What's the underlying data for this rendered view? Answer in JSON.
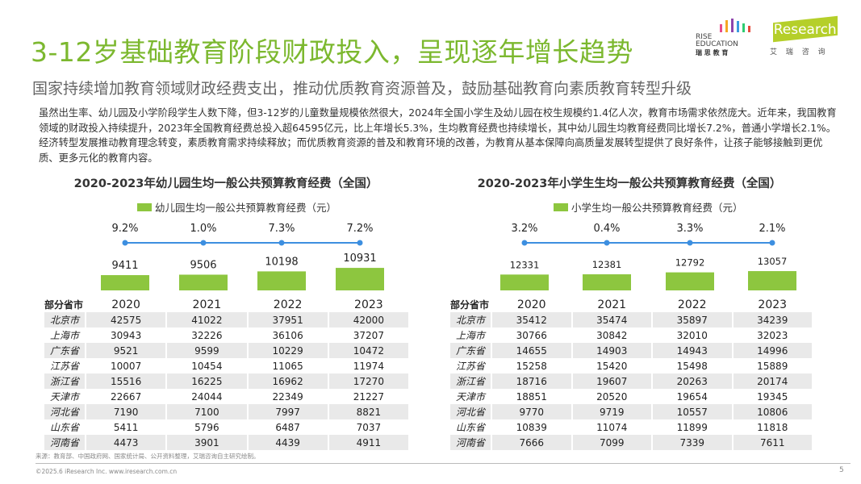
{
  "header": {
    "title": "3-12岁基础教育阶段财政投入，呈现逐年增长趋势",
    "subtitle": "国家持续增加教育领域财政经费支出，推动优质教育资源普及，鼓励基础教育向素质教育转型升级",
    "logos": {
      "rise": {
        "line1": "RISE",
        "line2": "EDUCATION",
        "line3": "瑞 思 教 育"
      },
      "iresearch": {
        "name": "iResearch",
        "cn": "艾 瑞 咨 询"
      }
    }
  },
  "paragraph": "虽然出生率、幼儿园及小学阶段学生人数下降，但3-12岁的儿童数量规模依然很大，2024年全国小学生及幼儿园在校生规模约1.4亿人次，教育市场需求依然庞大。近年来，我国教育领域的财政投入持续提升，2023年全国教育经费总投入超64595亿元，比上年增长5.3%，生均教育经费也持续增长，其中幼儿园生均教育经费同比增长7.2%，普通小学增长2.1%。经济转型发展推动教育理念转变，素质教育需求持续释放；而优质教育资源的普及和教育环境的改善，为教育从基本保障向高质量发展转型提供了良好条件，让孩子能够接触到更优质、更多元化的教育内容。",
  "colors": {
    "accent": "#7cb82f",
    "bar": "#8dc63f",
    "line": "#3d8fe0"
  },
  "chart_data": [
    {
      "type": "bar",
      "title": "2020-2023年幼儿园生均一般公共预算教育经费（全国）",
      "categories": [
        "2020",
        "2021",
        "2022",
        "2023"
      ],
      "series": [
        {
          "name": "幼儿园生均一般公共预算教育经费（元）",
          "values": [
            9411,
            9506,
            10198,
            10931
          ]
        }
      ],
      "growth_labels": [
        "9.2%",
        "1.0%",
        "7.3%",
        "7.2%"
      ],
      "legend": "top"
    },
    {
      "type": "bar",
      "title": "2020-2023年小学生生均一般公共预算教育经费（全国）",
      "categories": [
        "2020",
        "2021",
        "2022",
        "2023"
      ],
      "series": [
        {
          "name": "小学生均一般公共预算教育经费（元）",
          "values": [
            12331,
            12381,
            12792,
            13057
          ]
        }
      ],
      "growth_labels": [
        "3.2%",
        "0.4%",
        "3.3%",
        "2.1%"
      ],
      "legend": "top"
    }
  ],
  "tables": [
    {
      "header": [
        "部分省市",
        "2020",
        "2021",
        "2022",
        "2023"
      ],
      "rows": [
        [
          "北京市",
          "42575",
          "41022",
          "37951",
          "42000"
        ],
        [
          "上海市",
          "30943",
          "32226",
          "36106",
          "37207"
        ],
        [
          "广东省",
          "9521",
          "9599",
          "10229",
          "10472"
        ],
        [
          "江苏省",
          "10007",
          "10454",
          "11065",
          "11974"
        ],
        [
          "浙江省",
          "15516",
          "16225",
          "16962",
          "17270"
        ],
        [
          "天津市",
          "22667",
          "24044",
          "22349",
          "21227"
        ],
        [
          "河北省",
          "7190",
          "7100",
          "7997",
          "8821"
        ],
        [
          "山东省",
          "5411",
          "5796",
          "6487",
          "7037"
        ],
        [
          "河南省",
          "4473",
          "3901",
          "4439",
          "4911"
        ]
      ]
    },
    {
      "header": [
        "部分省市",
        "2020",
        "2021",
        "2022",
        "2023"
      ],
      "rows": [
        [
          "北京市",
          "35412",
          "35474",
          "35897",
          "34239"
        ],
        [
          "上海市",
          "30766",
          "30842",
          "32010",
          "32023"
        ],
        [
          "广东省",
          "14655",
          "14903",
          "14943",
          "14996"
        ],
        [
          "江苏省",
          "15258",
          "15420",
          "15498",
          "15889"
        ],
        [
          "浙江省",
          "18716",
          "19607",
          "20263",
          "20174"
        ],
        [
          "天津市",
          "18851",
          "20520",
          "19654",
          "19345"
        ],
        [
          "河北省",
          "9770",
          "9719",
          "10557",
          "10806"
        ],
        [
          "山东省",
          "10839",
          "11074",
          "11899",
          "11818"
        ],
        [
          "河南省",
          "7666",
          "7099",
          "7339",
          "7611"
        ]
      ]
    }
  ],
  "footer": {
    "source": "来源：教育部、中国政府网、国家统计局、公开资料整理，艾瑞咨询自主研究绘制。",
    "copyright": "©2025.6 iResearch Inc. www.iresearch.com.cn",
    "page": "5"
  }
}
